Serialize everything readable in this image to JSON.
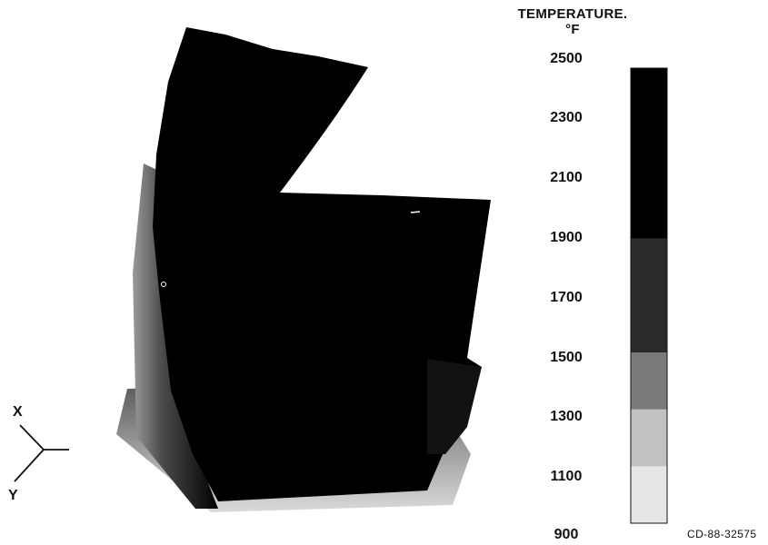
{
  "legend": {
    "title_line1": "TEMPERATURE.",
    "title_line2": "°F",
    "ticks": [
      "2500",
      "2300",
      "2100",
      "1900",
      "1700",
      "1500",
      "1300",
      "1100",
      "900"
    ],
    "bands": [
      {
        "from": 900,
        "to": 1100,
        "color": "#e6e6e6"
      },
      {
        "from": 1100,
        "to": 1300,
        "color": "#c2c2c2"
      },
      {
        "from": 1300,
        "to": 1500,
        "color": "#7a7a7a"
      },
      {
        "from": 1500,
        "to": 1900,
        "color": "#2a2a2a"
      },
      {
        "from": 1900,
        "to": 2500,
        "color": "#000000"
      }
    ]
  },
  "axes": {
    "x": "X",
    "y": "Y"
  },
  "figure_code": "CD-88-32575",
  "colors": {
    "hot": "#000000",
    "mid": "#3a3a3a",
    "cool": "#d8d8d8",
    "background": "#ffffff"
  }
}
